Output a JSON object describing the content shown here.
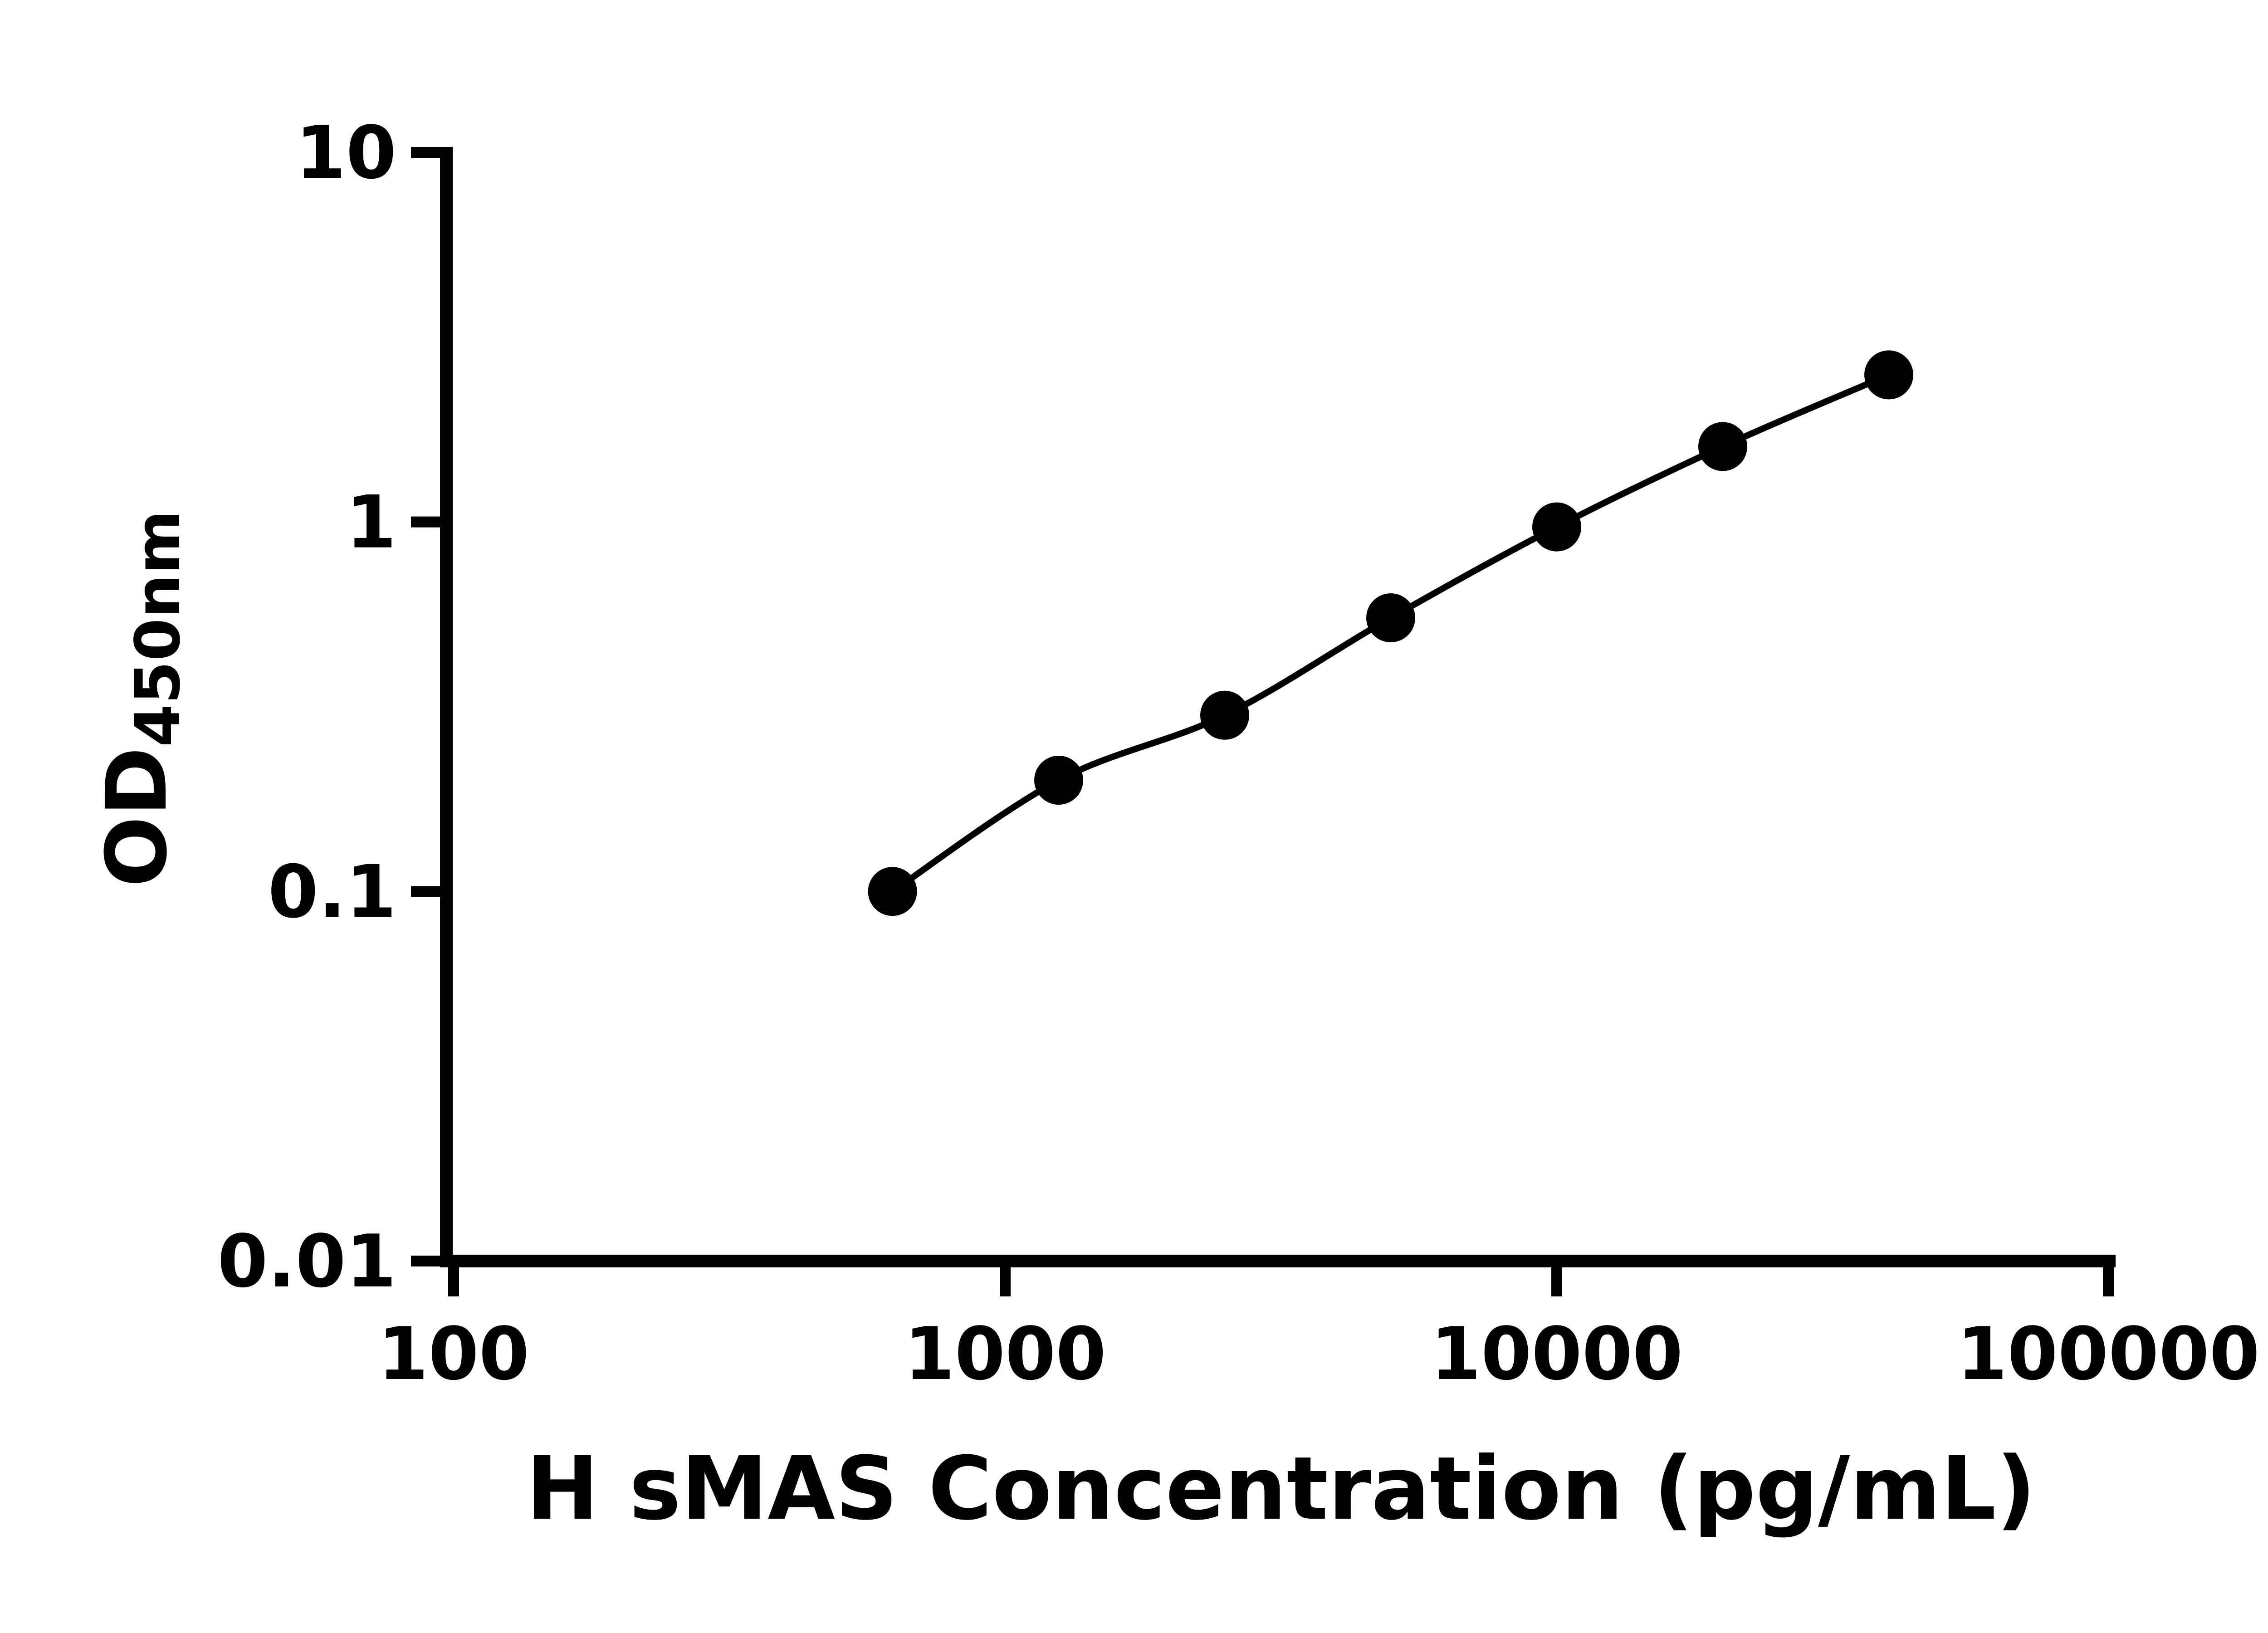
{
  "chart_data": {
    "type": "line",
    "title": "",
    "xlabel": "H sMAS Concentration (pg/mL)",
    "ylabel_main": "OD",
    "ylabel_sub": "450nm",
    "x_scale": "log",
    "y_scale": "log",
    "x": [
      625,
      1250,
      2500,
      5000,
      10000,
      20000,
      40000
    ],
    "y": [
      0.1,
      0.2,
      0.3,
      0.55,
      0.97,
      1.6,
      2.5
    ],
    "x_ticks": [
      100,
      1000,
      10000,
      100000
    ],
    "x_tick_labels": [
      "100",
      "1000",
      "10000",
      "100000"
    ],
    "y_ticks": [
      0.01,
      0.1,
      1,
      10
    ],
    "y_tick_labels": [
      "0.01",
      "0.1",
      "1",
      "10"
    ],
    "xlim": [
      100,
      100000
    ],
    "ylim": [
      0.01,
      10
    ],
    "grid": false,
    "legend": "none",
    "marker": "circle",
    "marker_color": "#000000",
    "line_color": "#000000",
    "axis_color": "#000000",
    "background": "#ffffff"
  }
}
